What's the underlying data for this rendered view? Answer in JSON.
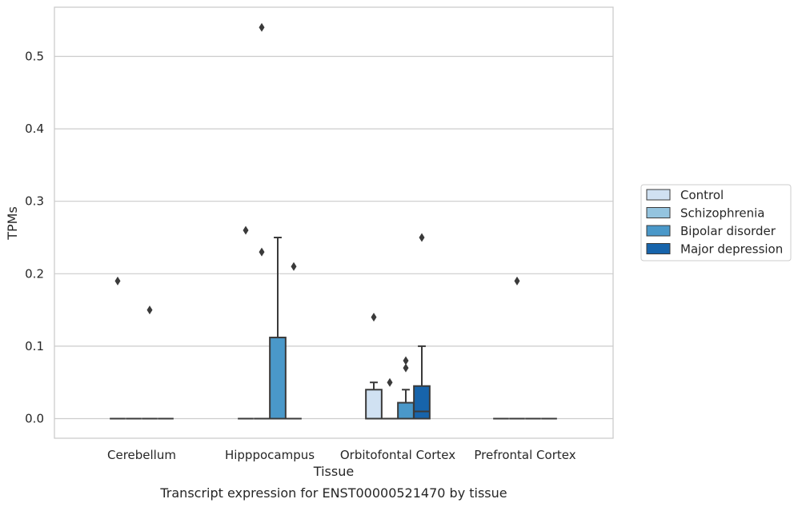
{
  "chart_data": {
    "type": "box",
    "title": "",
    "caption": "Transcript expression for ENST00000521470 by tissue",
    "xlabel": "Tissue",
    "ylabel": "TPMs",
    "ylim": [
      -0.027,
      0.57
    ],
    "yticks": [
      0.0,
      0.1,
      0.2,
      0.3,
      0.4,
      0.5
    ],
    "ytick_labels": [
      "0.0",
      "0.1",
      "0.2",
      "0.3",
      "0.4",
      "0.5"
    ],
    "grid": "horizontal",
    "legend_position": "right",
    "categories": [
      "Cerebellum",
      "Hipppocampus",
      "Orbitofontal Cortex",
      "Prefrontal Cortex"
    ],
    "series": [
      {
        "name": "Control",
        "color": "#d0e1f2",
        "boxes": [
          {
            "q1": 0,
            "median": 0,
            "q3": 0,
            "whisker_low": 0,
            "whisker_high": 0,
            "outliers": [
              0.19
            ]
          },
          {
            "q1": 0,
            "median": 0,
            "q3": 0,
            "whisker_low": 0,
            "whisker_high": 0,
            "outliers": [
              0.26
            ]
          },
          {
            "q1": 0,
            "median": 0,
            "q3": 0.04,
            "whisker_low": 0,
            "whisker_high": 0.05,
            "outliers": [
              0.14
            ]
          },
          {
            "q1": 0,
            "median": 0,
            "q3": 0,
            "whisker_low": 0,
            "whisker_high": 0,
            "outliers": []
          }
        ]
      },
      {
        "name": "Schizophrenia",
        "color": "#94c4df",
        "boxes": [
          {
            "q1": 0,
            "median": 0,
            "q3": 0,
            "whisker_low": 0,
            "whisker_high": 0,
            "outliers": []
          },
          {
            "q1": 0,
            "median": 0,
            "q3": 0,
            "whisker_low": 0,
            "whisker_high": 0,
            "outliers": [
              0.23,
              0.54
            ]
          },
          {
            "q1": 0,
            "median": 0,
            "q3": 0,
            "whisker_low": 0,
            "whisker_high": 0,
            "outliers": [
              0.05
            ]
          },
          {
            "q1": 0,
            "median": 0,
            "q3": 0,
            "whisker_low": 0,
            "whisker_high": 0,
            "outliers": [
              0.19
            ]
          }
        ]
      },
      {
        "name": "Bipolar disorder",
        "color": "#4a98c9",
        "boxes": [
          {
            "q1": 0,
            "median": 0,
            "q3": 0,
            "whisker_low": 0,
            "whisker_high": 0,
            "outliers": [
              0.15
            ]
          },
          {
            "q1": 0,
            "median": 0,
            "q3": 0.112,
            "whisker_low": 0,
            "whisker_high": 0.25,
            "outliers": []
          },
          {
            "q1": 0,
            "median": 0,
            "q3": 0.022,
            "whisker_low": 0,
            "whisker_high": 0.04,
            "outliers": [
              0.07,
              0.08
            ]
          },
          {
            "q1": 0,
            "median": 0,
            "q3": 0,
            "whisker_low": 0,
            "whisker_high": 0,
            "outliers": []
          }
        ]
      },
      {
        "name": "Major depression",
        "color": "#1764ab",
        "boxes": [
          {
            "q1": 0,
            "median": 0,
            "q3": 0,
            "whisker_low": 0,
            "whisker_high": 0,
            "outliers": []
          },
          {
            "q1": 0,
            "median": 0,
            "q3": 0,
            "whisker_low": 0,
            "whisker_high": 0,
            "outliers": [
              0.21
            ]
          },
          {
            "q1": 0,
            "median": 0.01,
            "q3": 0.045,
            "whisker_low": 0,
            "whisker_high": 0.1,
            "outliers": [
              0.25
            ]
          },
          {
            "q1": 0,
            "median": 0,
            "q3": 0,
            "whisker_low": 0,
            "whisker_high": 0,
            "outliers": []
          }
        ]
      }
    ]
  }
}
